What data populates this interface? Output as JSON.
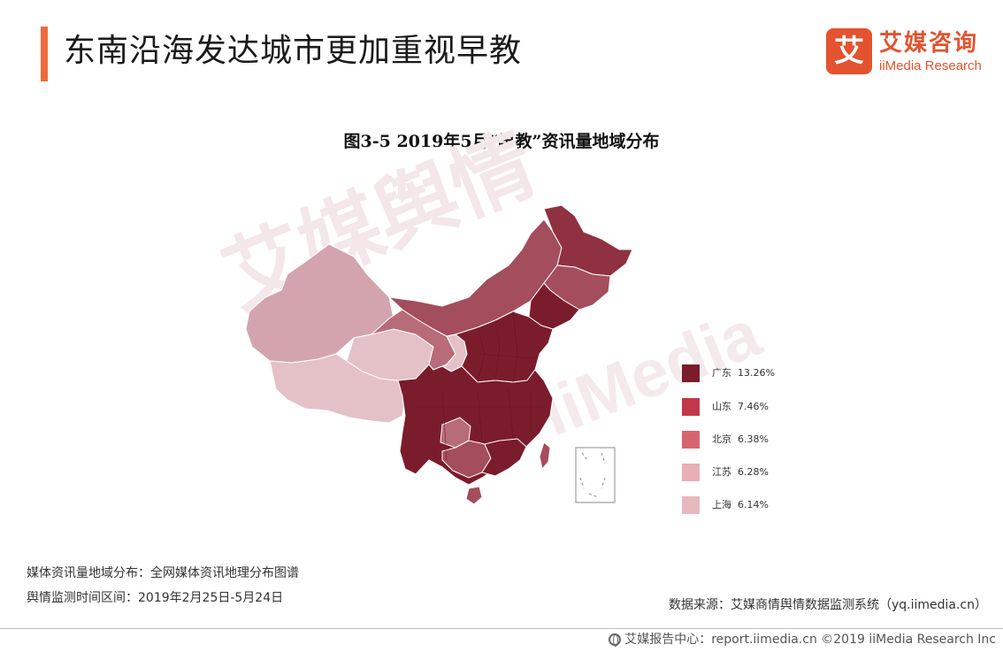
{
  "header": {
    "title": "东南沿海发达城市更加重视早教",
    "accent_color": "#ec6b3c"
  },
  "logo": {
    "glyph": "艾",
    "name_cn": "艾媒咨询",
    "name_en": "iiMedia Research",
    "brand_color": "#e3532f"
  },
  "watermark": {
    "main": "艾媒舆情",
    "secondary": "iiMedia"
  },
  "chart_data": {
    "type": "choropleth-map",
    "title": "图3-5 2019年5月“早教”资讯量地域分布",
    "region": "China",
    "legend_placement": "right",
    "legend": [
      {
        "label": "广东",
        "value": "13.26%",
        "color": "#7b1c2c"
      },
      {
        "label": "山东",
        "value": "7.46%",
        "color": "#c0394a"
      },
      {
        "label": "北京",
        "value": "6.38%",
        "color": "#d7656f"
      },
      {
        "label": "江苏",
        "value": "6.28%",
        "color": "#e9aeb6"
      },
      {
        "label": "上海",
        "value": "6.14%",
        "color": "#e8b8bf"
      }
    ],
    "shading_levels": {
      "darkest": "#7b1c2c",
      "dark": "#8f3140",
      "medium": "#a44d5c",
      "medium_light": "#b86b78",
      "light": "#d4a4ae",
      "lightest": "#e4c1c7"
    }
  },
  "footer": {
    "line1": "媒体资讯量地域分布：全网媒体资讯地理分布图谱",
    "line2": "舆情监测时间区间：2019年2月25日-5月24日",
    "source": "数据来源：艾媒商情舆情数据监测系统（yq.iimedia.cn）",
    "site": "艾媒报告中心：report.iimedia.cn  ©2019  iiMedia Research  Inc"
  }
}
